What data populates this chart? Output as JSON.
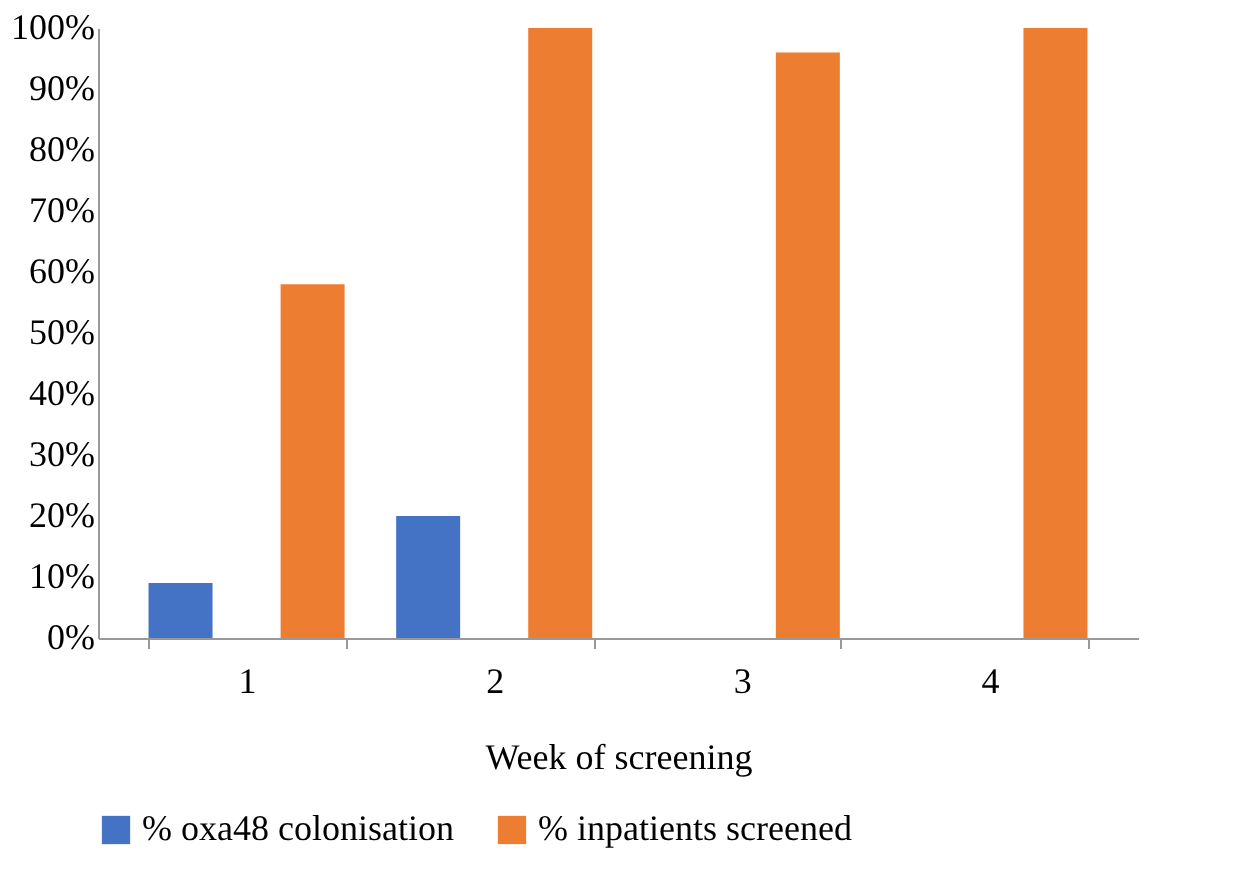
{
  "chart_data": {
    "type": "bar",
    "xlabel": "Week of screening",
    "categories": [
      "1",
      "2",
      "3",
      "4"
    ],
    "series": [
      {
        "name": "% oxa48 colonisation",
        "color": "#4472c4",
        "values": [
          9,
          20,
          0,
          0
        ]
      },
      {
        "name": "% inpatients screened",
        "color": "#ed7d31",
        "values": [
          58,
          100,
          96,
          100
        ]
      }
    ],
    "ylim": [
      0,
      100
    ],
    "yticks": [
      {
        "value": 0,
        "label": "0%"
      },
      {
        "value": 10,
        "label": "10%"
      },
      {
        "value": 20,
        "label": "20%"
      },
      {
        "value": 30,
        "label": "30%"
      },
      {
        "value": 40,
        "label": "40%"
      },
      {
        "value": 50,
        "label": "50%"
      },
      {
        "value": 60,
        "label": "60%"
      },
      {
        "value": 70,
        "label": "70%"
      },
      {
        "value": 80,
        "label": "80%"
      },
      {
        "value": 90,
        "label": "90%"
      },
      {
        "value": 100,
        "label": "100%"
      }
    ],
    "grid": false,
    "legend": "bottom"
  }
}
